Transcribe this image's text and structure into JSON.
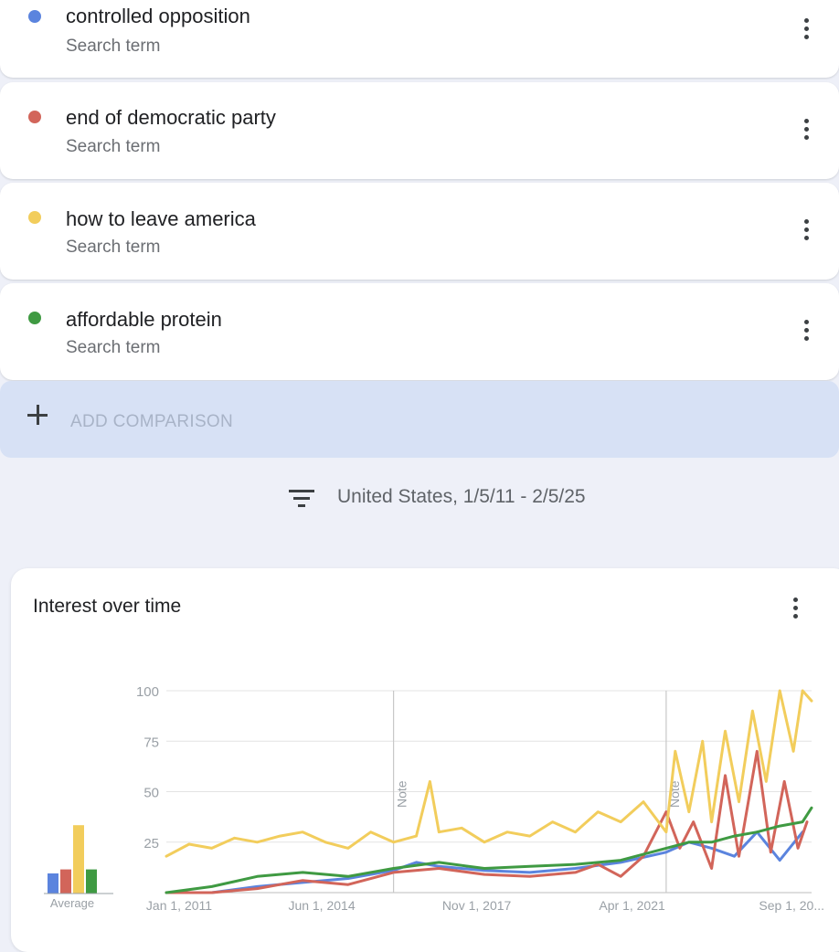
{
  "terms": [
    {
      "name": "controlled opposition",
      "sub": "Search term",
      "color": "#5b84de"
    },
    {
      "name": "end of democratic party",
      "sub": "Search term",
      "color": "#d2655a"
    },
    {
      "name": "how to leave america",
      "sub": "Search term",
      "color": "#f2cd5c"
    },
    {
      "name": "affordable protein",
      "sub": "Search term",
      "color": "#3f9a42"
    }
  ],
  "add_comparison": {
    "label": "ADD COMPARISON"
  },
  "filter": {
    "text": "United States, 1/5/11 - 2/5/25"
  },
  "chart_panel": {
    "title": "Interest over time"
  },
  "chart_data": {
    "type": "line",
    "title": "Interest over time",
    "ylim": [
      0,
      100
    ],
    "y_ticks": [
      "100",
      "75",
      "50",
      "25"
    ],
    "x_ticks": [
      "Jan 1, 2011",
      "Jun 1, 2014",
      "Nov 1, 2017",
      "Apr 1, 2021",
      "Sep 1, 20..."
    ],
    "notes": [
      {
        "label": "Note",
        "x": 2016.0
      },
      {
        "label": "Note",
        "x": 2022.0
      }
    ],
    "grid": true,
    "average": {
      "label": "Average",
      "values": [
        10,
        12,
        34,
        12
      ]
    },
    "series": [
      {
        "color": "#5b84de",
        "x": [
          2011.0,
          2012.0,
          2013.0,
          2014.0,
          2015.0,
          2016.0,
          2016.5,
          2017.0,
          2018.0,
          2019.0,
          2020.0,
          2021.0,
          2022.0,
          2022.5,
          2023.0,
          2023.5,
          2024.0,
          2024.5,
          2025.0
        ],
        "y": [
          0,
          0,
          3,
          5,
          7,
          11,
          15,
          13,
          11,
          10,
          12,
          15,
          20,
          25,
          22,
          18,
          30,
          16,
          30
        ]
      },
      {
        "color": "#d2655a",
        "x": [
          2011.0,
          2012.0,
          2013.0,
          2014.0,
          2015.0,
          2016.0,
          2017.0,
          2018.0,
          2019.0,
          2020.0,
          2020.5,
          2021.0,
          2021.5,
          2022.0,
          2022.3,
          2022.6,
          2023.0,
          2023.3,
          2023.6,
          2024.0,
          2024.3,
          2024.6,
          2024.9,
          2025.1
        ],
        "y": [
          0,
          0,
          2,
          6,
          4,
          10,
          12,
          9,
          8,
          10,
          14,
          8,
          18,
          40,
          22,
          35,
          12,
          58,
          18,
          70,
          20,
          55,
          22,
          35
        ]
      },
      {
        "color": "#f2cd5c",
        "x": [
          2011.0,
          2011.5,
          2012.0,
          2012.5,
          2013.0,
          2013.5,
          2014.0,
          2014.5,
          2015.0,
          2015.5,
          2016.0,
          2016.5,
          2016.8,
          2017.0,
          2017.5,
          2018.0,
          2018.5,
          2019.0,
          2019.5,
          2020.0,
          2020.5,
          2021.0,
          2021.5,
          2022.0,
          2022.2,
          2022.5,
          2022.8,
          2023.0,
          2023.3,
          2023.6,
          2023.9,
          2024.2,
          2024.5,
          2024.8,
          2025.0,
          2025.2
        ],
        "y": [
          18,
          24,
          22,
          27,
          25,
          28,
          30,
          25,
          22,
          30,
          25,
          28,
          55,
          30,
          32,
          25,
          30,
          28,
          35,
          30,
          40,
          35,
          45,
          30,
          70,
          40,
          75,
          35,
          80,
          45,
          90,
          55,
          100,
          70,
          100,
          95
        ]
      },
      {
        "color": "#3f9a42",
        "x": [
          2011.0,
          2012.0,
          2013.0,
          2014.0,
          2015.0,
          2016.0,
          2017.0,
          2018.0,
          2019.0,
          2020.0,
          2021.0,
          2022.0,
          2022.5,
          2023.0,
          2023.5,
          2024.0,
          2024.5,
          2025.0,
          2025.2
        ],
        "y": [
          0,
          3,
          8,
          10,
          8,
          12,
          15,
          12,
          13,
          14,
          16,
          22,
          25,
          25,
          28,
          30,
          33,
          35,
          42
        ]
      }
    ]
  }
}
